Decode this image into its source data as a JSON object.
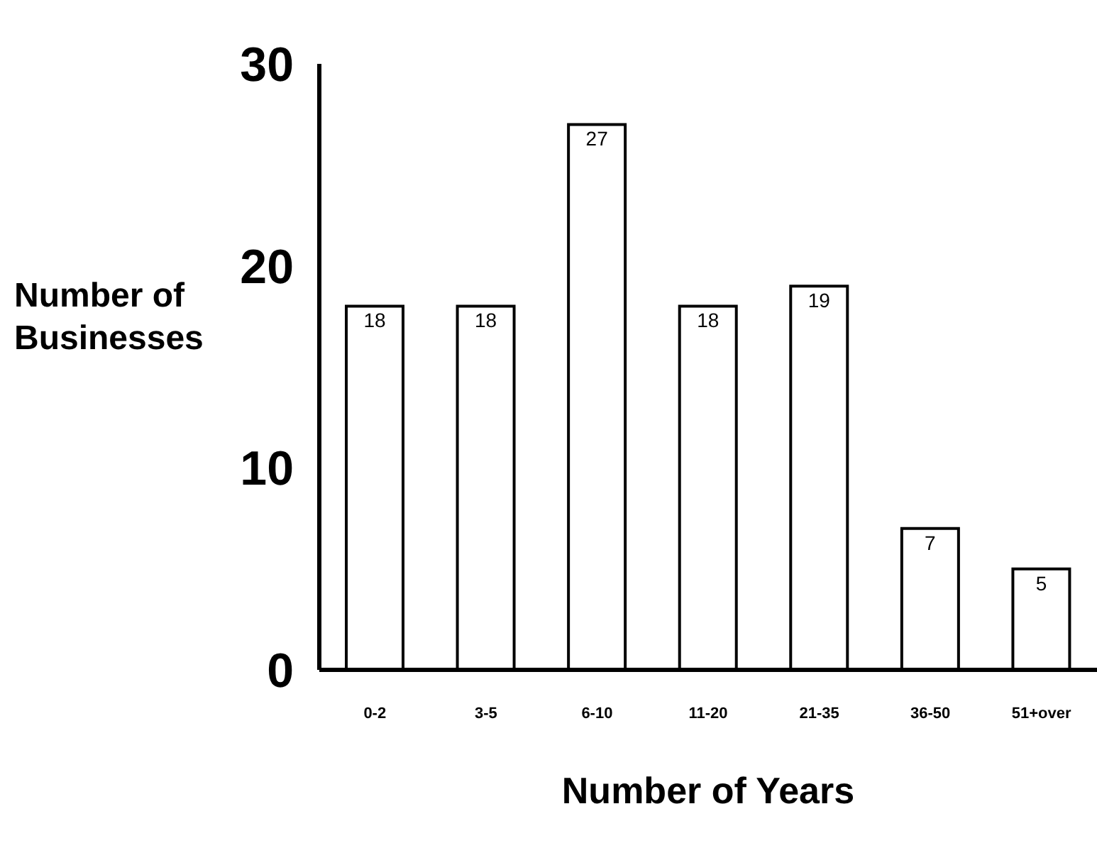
{
  "chart_data": {
    "type": "bar",
    "xlabel": "Number of Years",
    "ylabel": "Number of Businesses",
    "categories": [
      "0-2",
      "3-5",
      "6-10",
      "11-20",
      "21-35",
      "36-50",
      "51+over"
    ],
    "values": [
      18,
      18,
      27,
      18,
      19,
      7,
      5
    ],
    "color": "#ffffff",
    "ylim": [
      0,
      30
    ],
    "yticks": [
      0,
      10,
      20,
      30
    ],
    "data_labels": true,
    "grid": false,
    "legend": false
  }
}
